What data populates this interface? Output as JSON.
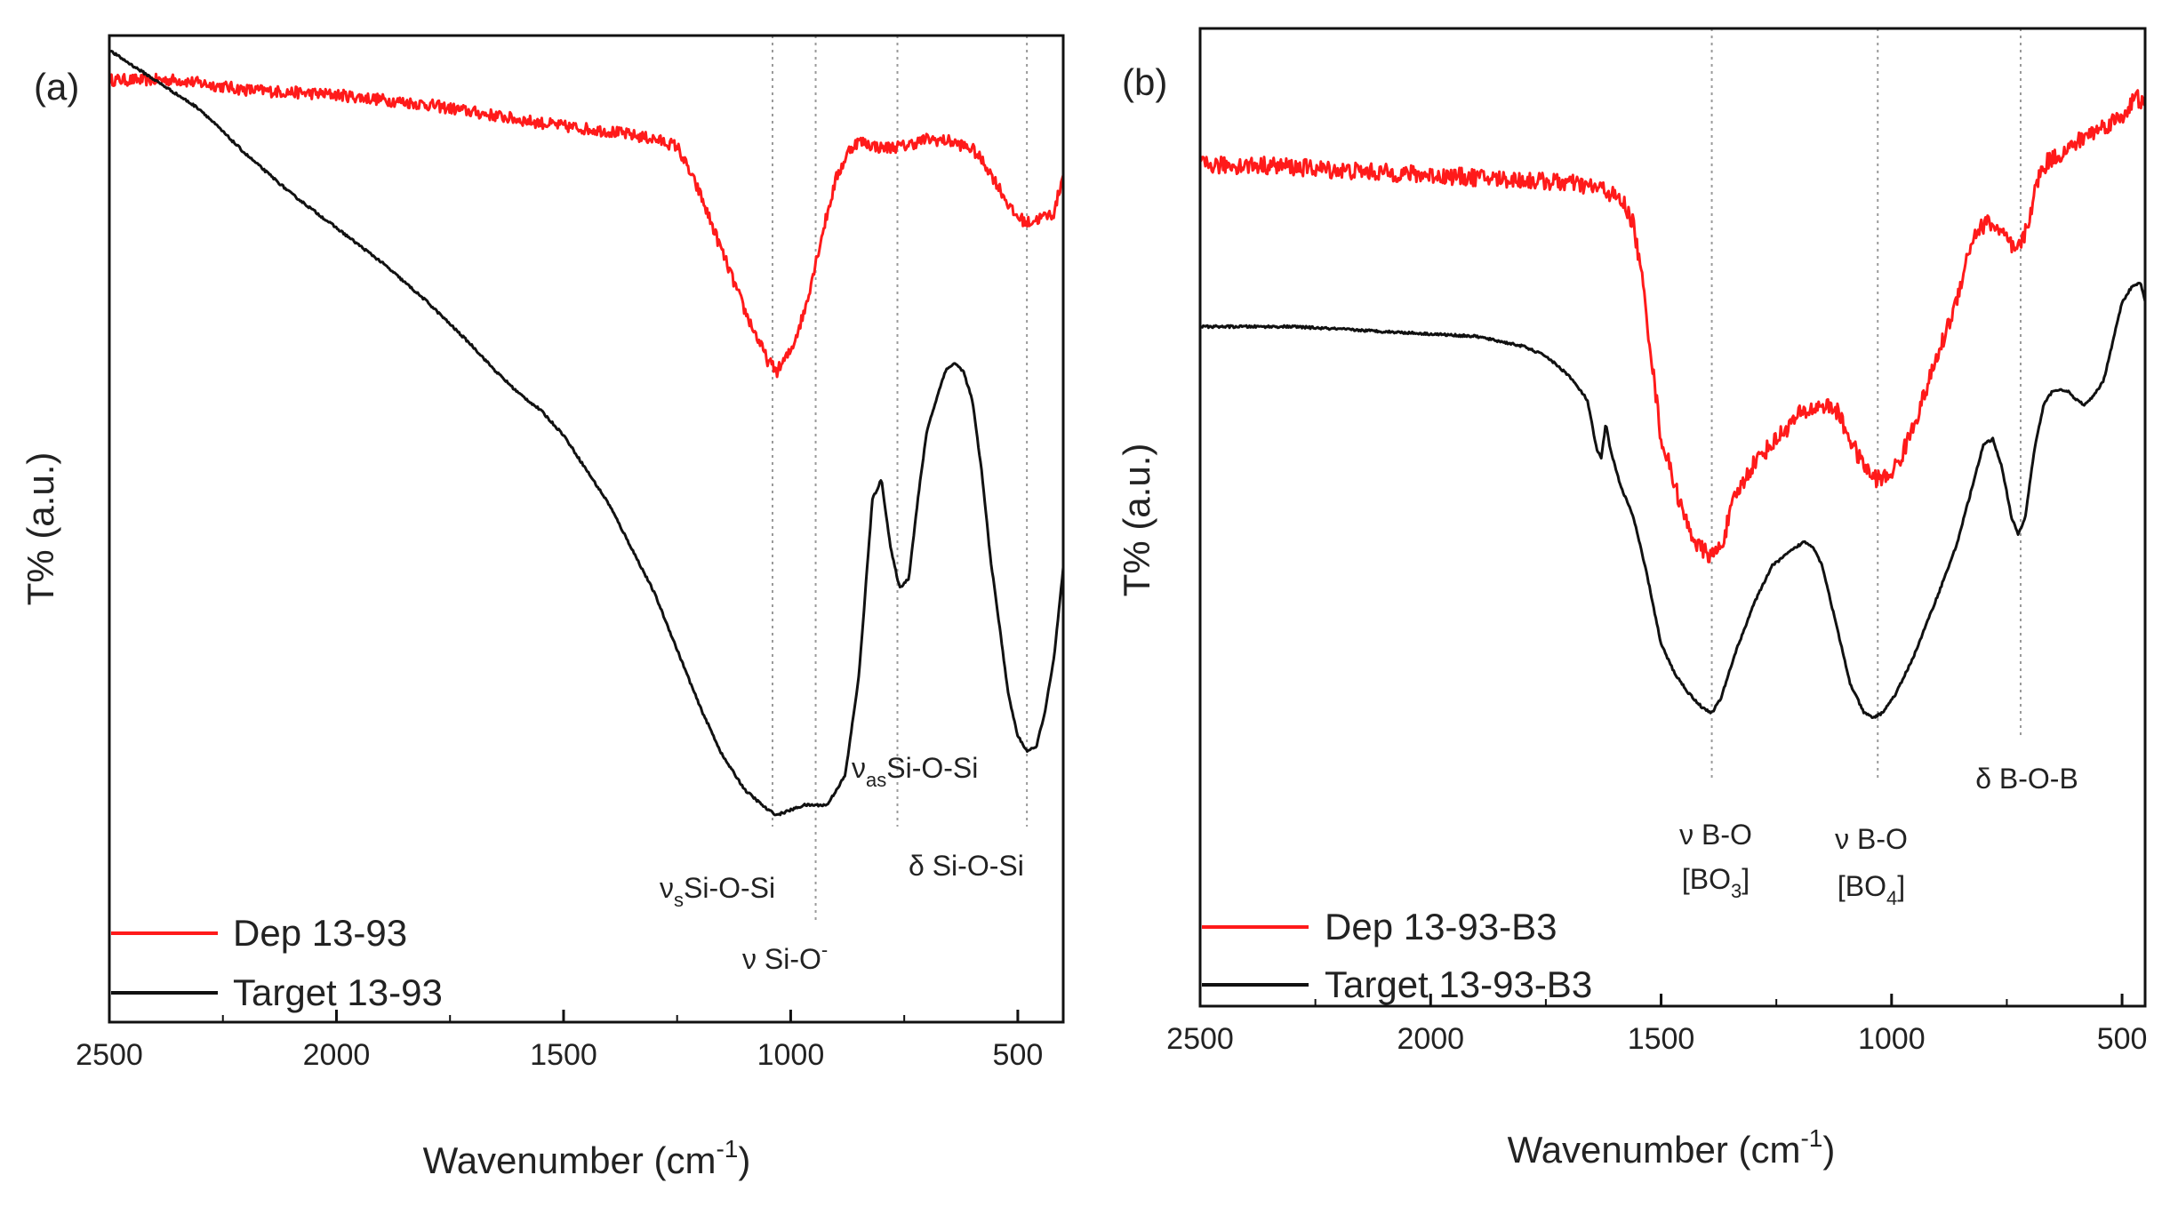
{
  "chart_data": [
    {
      "type": "line",
      "panel_label": "(a)",
      "xlabel": "Wavenumber (cm",
      "xlabel_sup": "-1",
      "xlabel_end": ")",
      "ylabel": "T% (a.u.)",
      "xlim": [
        2500,
        400
      ],
      "ylim": [
        0,
        100
      ],
      "x_reversed": true,
      "xticks": [
        2500,
        2000,
        1500,
        1000,
        500
      ],
      "legend_position": "bottom-left",
      "series": [
        {
          "name": "Dep 13-93",
          "color": "#ff1a1a",
          "noise": 0.6,
          "points": [
            [
              2500,
              95.5
            ],
            [
              2350,
              95.5
            ],
            [
              2200,
              94.5
            ],
            [
              2000,
              94
            ],
            [
              1800,
              93
            ],
            [
              1600,
              91.5
            ],
            [
              1500,
              90.8
            ],
            [
              1400,
              90.3
            ],
            [
              1300,
              89.5
            ],
            [
              1250,
              88.8
            ],
            [
              1200,
              84
            ],
            [
              1150,
              78
            ],
            [
              1100,
              72
            ],
            [
              1050,
              67
            ],
            [
              1030,
              66
            ],
            [
              1000,
              68
            ],
            [
              970,
              72
            ],
            [
              930,
              80
            ],
            [
              900,
              85.5
            ],
            [
              870,
              88.5
            ],
            [
              850,
              89.3
            ],
            [
              800,
              88.6
            ],
            [
              750,
              88.8
            ],
            [
              700,
              89.5
            ],
            [
              650,
              89.3
            ],
            [
              600,
              88.5
            ],
            [
              570,
              86.8
            ],
            [
              540,
              84.5
            ],
            [
              510,
              82
            ],
            [
              480,
              81
            ],
            [
              450,
              81.5
            ],
            [
              420,
              82
            ],
            [
              400,
              86
            ]
          ]
        },
        {
          "name": "Target 13-93",
          "color": "#111111",
          "noise": 0.12,
          "points": [
            [
              2500,
              98.5
            ],
            [
              2400,
              95.5
            ],
            [
              2300,
              92.5
            ],
            [
              2200,
              88
            ],
            [
              2100,
              84
            ],
            [
              2000,
              80.5
            ],
            [
              1900,
              77
            ],
            [
              1800,
              73
            ],
            [
              1700,
              68.5
            ],
            [
              1650,
              66
            ],
            [
              1600,
              63.8
            ],
            [
              1550,
              62
            ],
            [
              1500,
              59.5
            ],
            [
              1400,
              52.5
            ],
            [
              1300,
              43.5
            ],
            [
              1200,
              32
            ],
            [
              1150,
              27
            ],
            [
              1100,
              23.5
            ],
            [
              1050,
              21.5
            ],
            [
              1030,
              21
            ],
            [
              1000,
              21.5
            ],
            [
              970,
              22
            ],
            [
              950,
              22
            ],
            [
              920,
              22
            ],
            [
              880,
              25
            ],
            [
              850,
              35
            ],
            [
              820,
              53
            ],
            [
              800,
              55
            ],
            [
              780,
              48
            ],
            [
              760,
              44
            ],
            [
              740,
              45
            ],
            [
              720,
              53
            ],
            [
              700,
              60
            ],
            [
              660,
              66
            ],
            [
              640,
              66.8
            ],
            [
              620,
              66
            ],
            [
              600,
              63
            ],
            [
              580,
              56
            ],
            [
              560,
              47
            ],
            [
              540,
              40
            ],
            [
              520,
              33
            ],
            [
              500,
              29
            ],
            [
              480,
              27.5
            ],
            [
              460,
              27.8
            ],
            [
              440,
              31.5
            ],
            [
              420,
              37
            ],
            [
              400,
              46
            ]
          ]
        }
      ],
      "annotations": [
        {
          "x": 1040,
          "label": "ν",
          "sub": "s",
          "rest": "Si-O-Si"
        },
        {
          "x": 945,
          "label": "ν Si-O",
          "sup": "-"
        },
        {
          "x": 765,
          "label": "ν",
          "sub": "as",
          "rest": "Si-O-Si"
        },
        {
          "x": 480,
          "label": "δ Si-O-Si"
        }
      ]
    },
    {
      "type": "line",
      "panel_label": "(b)",
      "xlabel": "Wavenumber (cm",
      "xlabel_sup": "-1",
      "xlabel_end": ")",
      "ylabel": "T% (a.u.)",
      "xlim": [
        2500,
        450
      ],
      "ylim": [
        0,
        100
      ],
      "x_reversed": true,
      "xticks": [
        2500,
        2000,
        1500,
        1000,
        500
      ],
      "legend_position": "bottom-left",
      "series": [
        {
          "name": "Dep 13-93-B3",
          "color": "#ff1a1a",
          "noise": 0.9,
          "points": [
            [
              2500,
              86
            ],
            [
              2350,
              86
            ],
            [
              2200,
              85.5
            ],
            [
              2000,
              85
            ],
            [
              1800,
              84.5
            ],
            [
              1700,
              84.2
            ],
            [
              1620,
              83.5
            ],
            [
              1580,
              82
            ],
            [
              1560,
              80
            ],
            [
              1540,
              74
            ],
            [
              1520,
              66
            ],
            [
              1500,
              58
            ],
            [
              1480,
              55
            ],
            [
              1450,
              50
            ],
            [
              1420,
              47
            ],
            [
              1390,
              46
            ],
            [
              1370,
              47
            ],
            [
              1340,
              52
            ],
            [
              1300,
              55.5
            ],
            [
              1250,
              58
            ],
            [
              1200,
              60.5
            ],
            [
              1150,
              61.5
            ],
            [
              1120,
              61
            ],
            [
              1100,
              59
            ],
            [
              1070,
              56
            ],
            [
              1040,
              54
            ],
            [
              1010,
              54
            ],
            [
              980,
              56
            ],
            [
              940,
              61
            ],
            [
              900,
              66.5
            ],
            [
              860,
              72
            ],
            [
              840,
              76
            ],
            [
              820,
              79
            ],
            [
              790,
              80.3
            ],
            [
              760,
              79
            ],
            [
              730,
              77
            ],
            [
              710,
              79
            ],
            [
              680,
              85
            ],
            [
              660,
              86.5
            ],
            [
              620,
              87.5
            ],
            [
              580,
              89
            ],
            [
              540,
              90
            ],
            [
              500,
              91
            ],
            [
              470,
              93
            ],
            [
              450,
              92
            ]
          ]
        },
        {
          "name": "Target 13-93-B3",
          "color": "#111111",
          "noise": 0.12,
          "points": [
            [
              2500,
              69.5
            ],
            [
              2300,
              69.5
            ],
            [
              2100,
              69
            ],
            [
              1900,
              68.5
            ],
            [
              1800,
              67.5
            ],
            [
              1750,
              66.5
            ],
            [
              1700,
              64.5
            ],
            [
              1660,
              62
            ],
            [
              1640,
              57
            ],
            [
              1630,
              56
            ],
            [
              1620,
              59.5
            ],
            [
              1610,
              57
            ],
            [
              1590,
              53.5
            ],
            [
              1560,
              50
            ],
            [
              1530,
              44
            ],
            [
              1500,
              37
            ],
            [
              1470,
              34
            ],
            [
              1440,
              32
            ],
            [
              1410,
              30.5
            ],
            [
              1390,
              30
            ],
            [
              1370,
              31.5
            ],
            [
              1340,
              36
            ],
            [
              1300,
              41
            ],
            [
              1260,
              45
            ],
            [
              1220,
              46.5
            ],
            [
              1190,
              47.5
            ],
            [
              1170,
              47
            ],
            [
              1150,
              45
            ],
            [
              1120,
              39
            ],
            [
              1090,
              33
            ],
            [
              1060,
              30
            ],
            [
              1040,
              29.5
            ],
            [
              1020,
              30
            ],
            [
              990,
              32
            ],
            [
              950,
              36
            ],
            [
              900,
              42
            ],
            [
              860,
              47
            ],
            [
              820,
              54
            ],
            [
              800,
              57.5
            ],
            [
              780,
              58
            ],
            [
              760,
              55
            ],
            [
              740,
              50
            ],
            [
              725,
              48.2
            ],
            [
              710,
              50
            ],
            [
              690,
              57
            ],
            [
              670,
              61.5
            ],
            [
              650,
              63
            ],
            [
              620,
              63
            ],
            [
              600,
              62
            ],
            [
              580,
              61.5
            ],
            [
              560,
              62.5
            ],
            [
              540,
              64
            ],
            [
              520,
              68
            ],
            [
              500,
              72
            ],
            [
              480,
              73.5
            ],
            [
              460,
              74
            ],
            [
              450,
              72
            ]
          ]
        }
      ],
      "annotations": [
        {
          "x": 1390,
          "line1": "ν B-O",
          "line2_pre": "[BO",
          "line2_sub": "3",
          "line2_end": "]"
        },
        {
          "x": 1030,
          "line1": "ν B-O",
          "line2_pre": "[BO",
          "line2_sub": "4",
          "line2_end": "]"
        },
        {
          "x": 720,
          "label": "δ B-O-B"
        }
      ]
    }
  ]
}
